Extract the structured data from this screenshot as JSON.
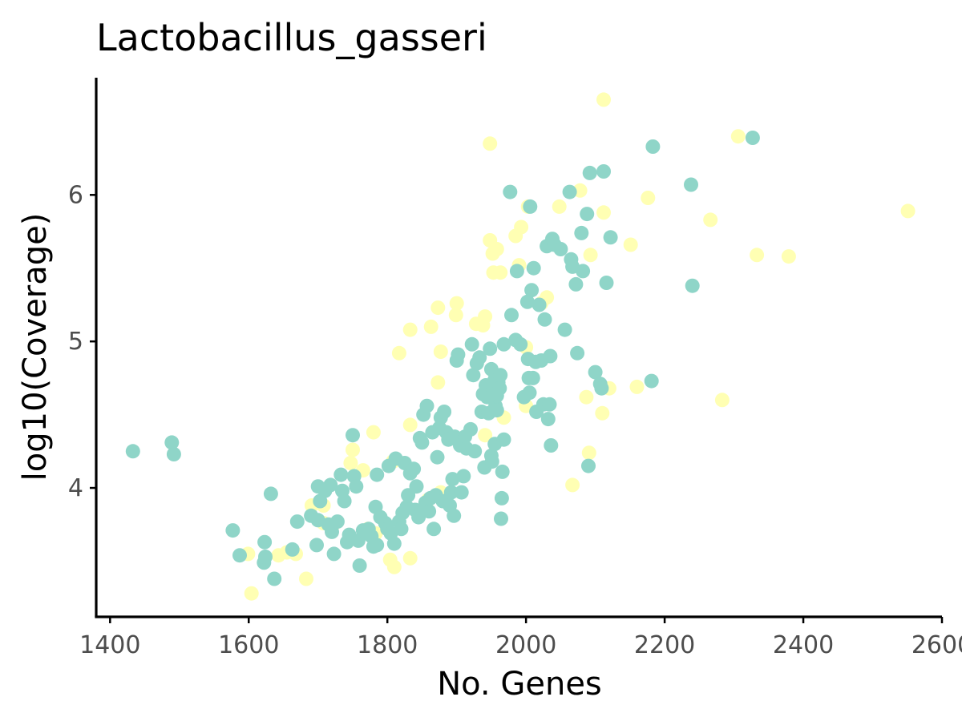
{
  "chart_data": {
    "type": "scatter",
    "title": "Lactobacillus_gasseri",
    "xlabel": "No. Genes",
    "ylabel": "log10(Coverage)",
    "xlim": [
      1380,
      2600
    ],
    "ylim": [
      3.12,
      6.8
    ],
    "xticks": [
      1400,
      1600,
      1800,
      2000,
      2200,
      2400,
      2600
    ],
    "yticks": [
      4,
      5,
      6
    ],
    "xtick_labels": [
      "1400",
      "1600",
      "1800",
      "2000",
      "2200",
      "2400",
      "2600"
    ],
    "ytick_labels": [
      "4",
      "5",
      "6"
    ],
    "grid": false,
    "legend": "none",
    "colors": {
      "teal": "#8fd5c8",
      "yellow": "#ffffb3"
    },
    "series": [
      {
        "color": "yellow",
        "points": [
          [
            1948,
            6.35
          ],
          [
            2112,
            6.65
          ],
          [
            2306,
            6.4
          ],
          [
            2551,
            5.89
          ],
          [
            2333,
            5.59
          ],
          [
            2379,
            5.58
          ],
          [
            2266,
            5.83
          ],
          [
            2176,
            5.98
          ],
          [
            2151,
            5.66
          ],
          [
            2078,
            6.03
          ],
          [
            2048,
            5.92
          ],
          [
            2112,
            5.88
          ],
          [
            2003,
            5.92
          ],
          [
            1993,
            5.78
          ],
          [
            1985,
            5.72
          ],
          [
            1948,
            5.69
          ],
          [
            1952,
            5.6
          ],
          [
            1958,
            5.63
          ],
          [
            1953,
            5.47
          ],
          [
            1963,
            5.47
          ],
          [
            1990,
            5.52
          ],
          [
            2093,
            5.59
          ],
          [
            2022,
            5.26
          ],
          [
            2030,
            5.3
          ],
          [
            1900,
            5.26
          ],
          [
            1899,
            5.18
          ],
          [
            1873,
            5.23
          ],
          [
            1863,
            5.1
          ],
          [
            1833,
            5.08
          ],
          [
            1817,
            4.92
          ],
          [
            1877,
            4.93
          ],
          [
            1928,
            5.12
          ],
          [
            1938,
            5.11
          ],
          [
            1941,
            5.17
          ],
          [
            2000,
            4.96
          ],
          [
            2000,
            4.56
          ],
          [
            2087,
            4.62
          ],
          [
            2110,
            4.51
          ],
          [
            2120,
            4.68
          ],
          [
            2160,
            4.69
          ],
          [
            2283,
            4.6
          ],
          [
            2091,
            4.24
          ],
          [
            2067,
            4.02
          ],
          [
            1968,
            4.48
          ],
          [
            1941,
            4.36
          ],
          [
            1873,
            4.72
          ],
          [
            1833,
            4.43
          ],
          [
            1780,
            4.38
          ],
          [
            1808,
            4.18
          ],
          [
            1765,
            4.12
          ],
          [
            1747,
            4.17
          ],
          [
            1750,
            4.26
          ],
          [
            1772,
            3.72
          ],
          [
            1691,
            3.88
          ],
          [
            1708,
            3.88
          ],
          [
            1722,
            3.75
          ],
          [
            1708,
            3.76
          ],
          [
            1668,
            3.55
          ],
          [
            1655,
            3.56
          ],
          [
            1643,
            3.54
          ],
          [
            1683,
            3.38
          ],
          [
            1599,
            3.55
          ],
          [
            1604,
            3.28
          ],
          [
            1783,
            3.69
          ],
          [
            1804,
            3.51
          ],
          [
            1810,
            3.46
          ],
          [
            1833,
            3.52
          ],
          [
            1877,
            3.97
          ],
          [
            1859,
            3.92
          ]
        ]
      },
      {
        "color": "teal",
        "points": [
          [
            1433,
            4.25
          ],
          [
            1489,
            4.31
          ],
          [
            1492,
            4.23
          ],
          [
            1577,
            3.71
          ],
          [
            1587,
            3.54
          ],
          [
            1622,
            3.49
          ],
          [
            1623,
            3.63
          ],
          [
            1624,
            3.53
          ],
          [
            1632,
            3.96
          ],
          [
            1637,
            3.38
          ],
          [
            1663,
            3.58
          ],
          [
            1670,
            3.77
          ],
          [
            1690,
            3.81
          ],
          [
            1698,
            3.61
          ],
          [
            1700,
            3.78
          ],
          [
            1700,
            4.01
          ],
          [
            1703,
            3.91
          ],
          [
            1710,
            3.98
          ],
          [
            1715,
            3.75
          ],
          [
            1718,
            4.02
          ],
          [
            1720,
            3.7
          ],
          [
            1723,
            3.55
          ],
          [
            1728,
            3.77
          ],
          [
            1733,
            4.09
          ],
          [
            1735,
            3.98
          ],
          [
            1738,
            3.91
          ],
          [
            1742,
            3.63
          ],
          [
            1745,
            3.68
          ],
          [
            1750,
            4.36
          ],
          [
            1752,
            4.08
          ],
          [
            1755,
            4.01
          ],
          [
            1758,
            3.64
          ],
          [
            1760,
            3.47
          ],
          [
            1765,
            3.71
          ],
          [
            1773,
            3.72
          ],
          [
            1777,
            3.67
          ],
          [
            1780,
            3.6
          ],
          [
            1783,
            3.87
          ],
          [
            1785,
            4.09
          ],
          [
            1785,
            3.61
          ],
          [
            1790,
            3.8
          ],
          [
            1797,
            3.76
          ],
          [
            1800,
            3.72
          ],
          [
            1802,
            4.15
          ],
          [
            1805,
            3.69
          ],
          [
            1810,
            3.62
          ],
          [
            1812,
            4.2
          ],
          [
            1817,
            3.77
          ],
          [
            1820,
            3.72
          ],
          [
            1822,
            3.83
          ],
          [
            1825,
            4.17
          ],
          [
            1828,
            3.87
          ],
          [
            1830,
            3.95
          ],
          [
            1833,
            4.1
          ],
          [
            1838,
            4.13
          ],
          [
            1840,
            3.85
          ],
          [
            1842,
            4.01
          ],
          [
            1845,
            3.8
          ],
          [
            1847,
            4.34
          ],
          [
            1850,
            4.31
          ],
          [
            1852,
            4.5
          ],
          [
            1855,
            3.9
          ],
          [
            1857,
            4.56
          ],
          [
            1860,
            3.84
          ],
          [
            1862,
            3.93
          ],
          [
            1865,
            4.38
          ],
          [
            1867,
            3.72
          ],
          [
            1870,
            3.95
          ],
          [
            1872,
            4.21
          ],
          [
            1875,
            4.41
          ],
          [
            1877,
            4.48
          ],
          [
            1880,
            3.91
          ],
          [
            1882,
            4.52
          ],
          [
            1885,
            4.38
          ],
          [
            1888,
            4.33
          ],
          [
            1890,
            3.88
          ],
          [
            1892,
            3.97
          ],
          [
            1894,
            4.06
          ],
          [
            1896,
            3.81
          ],
          [
            1897,
            4.35
          ],
          [
            1900,
            4.87
          ],
          [
            1902,
            4.91
          ],
          [
            1905,
            4.29
          ],
          [
            1907,
            3.97
          ],
          [
            1910,
            4.08
          ],
          [
            1912,
            4.35
          ],
          [
            1914,
            4.27
          ],
          [
            1920,
            4.4
          ],
          [
            1922,
            4.98
          ],
          [
            1924,
            4.77
          ],
          [
            1926,
            4.25
          ],
          [
            1929,
            4.85
          ],
          [
            1933,
            4.89
          ],
          [
            1936,
            4.52
          ],
          [
            1938,
            4.64
          ],
          [
            1940,
            4.14
          ],
          [
            1942,
            4.7
          ],
          [
            1944,
            4.62
          ],
          [
            1946,
            4.51
          ],
          [
            1948,
            4.95
          ],
          [
            1950,
            4.81
          ],
          [
            1950,
            4.22
          ],
          [
            1951,
            4.18
          ],
          [
            1953,
            4.67
          ],
          [
            1955,
            4.74
          ],
          [
            1955,
            4.3
          ],
          [
            1956,
            4.56
          ],
          [
            1958,
            4.53
          ],
          [
            1958,
            4.63
          ],
          [
            1960,
            4.72
          ],
          [
            1962,
            4.68
          ],
          [
            1963,
            4.77
          ],
          [
            1964,
            3.79
          ],
          [
            1965,
            3.93
          ],
          [
            1966,
            4.11
          ],
          [
            1968,
            4.33
          ],
          [
            1968,
            4.98
          ],
          [
            1977,
            6.02
          ],
          [
            1979,
            5.18
          ],
          [
            1985,
            5.01
          ],
          [
            1987,
            5.48
          ],
          [
            1992,
            4.98
          ],
          [
            1997,
            4.62
          ],
          [
            2002,
            5.27
          ],
          [
            2003,
            4.88
          ],
          [
            2004,
            4.75
          ],
          [
            2005,
            4.65
          ],
          [
            2006,
            5.92
          ],
          [
            2008,
            5.35
          ],
          [
            2010,
            4.75
          ],
          [
            2011,
            5.5
          ],
          [
            2014,
            4.86
          ],
          [
            2015,
            4.52
          ],
          [
            2019,
            5.25
          ],
          [
            2022,
            4.87
          ],
          [
            2025,
            4.57
          ],
          [
            2027,
            5.15
          ],
          [
            2030,
            5.65
          ],
          [
            2032,
            4.47
          ],
          [
            2034,
            4.57
          ],
          [
            2035,
            4.9
          ],
          [
            2036,
            4.29
          ],
          [
            2038,
            5.7
          ],
          [
            2041,
            5.66
          ],
          [
            2050,
            5.63
          ],
          [
            2056,
            5.08
          ],
          [
            2063,
            6.02
          ],
          [
            2065,
            5.56
          ],
          [
            2067,
            5.51
          ],
          [
            2072,
            5.39
          ],
          [
            2074,
            4.92
          ],
          [
            2080,
            5.74
          ],
          [
            2082,
            5.48
          ],
          [
            2088,
            5.87
          ],
          [
            2090,
            4.15
          ],
          [
            2092,
            6.15
          ],
          [
            2100,
            4.79
          ],
          [
            2107,
            4.71
          ],
          [
            2109,
            4.68
          ],
          [
            2112,
            6.16
          ],
          [
            2116,
            5.4
          ],
          [
            2122,
            5.71
          ],
          [
            2181,
            4.73
          ],
          [
            2183,
            6.33
          ],
          [
            2238,
            6.07
          ],
          [
            2240,
            5.38
          ],
          [
            2327,
            6.39
          ]
        ]
      }
    ]
  }
}
